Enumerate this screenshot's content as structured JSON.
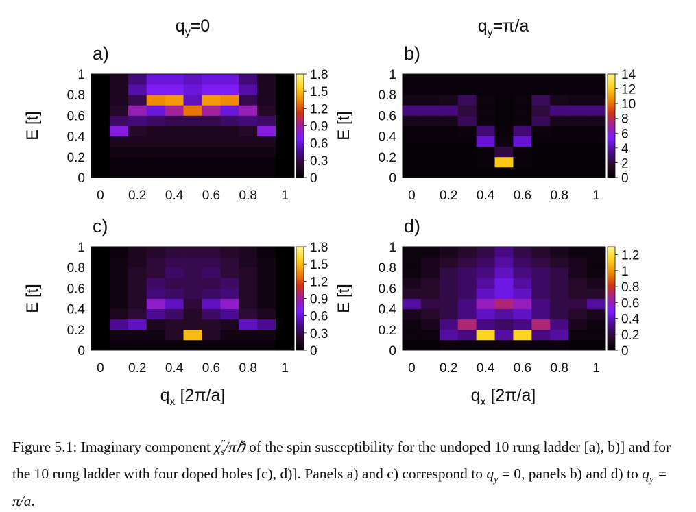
{
  "figure": {
    "column_titles": [
      {
        "base": "q",
        "sub": "y",
        "rest": "=0"
      },
      {
        "base": "q",
        "sub": "y",
        "rest": "=π/a"
      }
    ],
    "x_axis_label": {
      "base": "q",
      "sub": "x",
      "rest": " [2π/a]"
    },
    "y_axis_label": "E [t]",
    "colormap": [
      "#000000",
      "#2a0a2e",
      "#4c0a90",
      "#7a1cff",
      "#a020a0",
      "#d23214",
      "#f08a00",
      "#ffd21a",
      "#fff48a"
    ]
  },
  "chart_data": [
    {
      "type": "heatmap",
      "panel_label": "a)",
      "x": [
        0,
        0.1,
        0.2,
        0.3,
        0.4,
        0.5,
        0.6,
        0.7,
        0.8,
        0.9,
        1
      ],
      "y": [
        0.05,
        0.15,
        0.25,
        0.35,
        0.45,
        0.55,
        0.65,
        0.75,
        0.85,
        0.95
      ],
      "z": [
        [
          0,
          0.05,
          0.05,
          0.05,
          0.05,
          0.05,
          0.05,
          0.05,
          0.05,
          0.05,
          0
        ],
        [
          0,
          0.05,
          0.05,
          0.05,
          0.05,
          0.05,
          0.05,
          0.05,
          0.05,
          0.05,
          0
        ],
        [
          0,
          0.1,
          0.1,
          0.1,
          0.1,
          0.1,
          0.1,
          0.1,
          0.1,
          0.1,
          0
        ],
        [
          0,
          0.15,
          0.15,
          0.15,
          0.15,
          0.15,
          0.15,
          0.15,
          0.15,
          0.15,
          0
        ],
        [
          0,
          0.75,
          0.2,
          0.15,
          0.15,
          0.15,
          0.15,
          0.15,
          0.2,
          0.75,
          0
        ],
        [
          0,
          0.35,
          0.4,
          0.35,
          0.3,
          0.3,
          0.3,
          0.35,
          0.4,
          0.35,
          0
        ],
        [
          0,
          0.2,
          0.85,
          0.6,
          0.9,
          1.3,
          0.9,
          0.6,
          0.85,
          0.2,
          0
        ],
        [
          0,
          0.15,
          0.3,
          1.35,
          1.4,
          0.55,
          1.4,
          1.35,
          0.3,
          0.15,
          0
        ],
        [
          0,
          0.15,
          0.5,
          0.7,
          0.7,
          0.6,
          0.7,
          0.7,
          0.5,
          0.15,
          0
        ],
        [
          0,
          0.15,
          0.4,
          0.6,
          0.6,
          0.55,
          0.6,
          0.6,
          0.4,
          0.15,
          0
        ]
      ],
      "xlim": [
        0,
        1
      ],
      "ylim": [
        0,
        1
      ],
      "x_ticks": [
        "0",
        "0.2",
        "0.4",
        "0.6",
        "0.8",
        "1"
      ],
      "y_ticks": [
        "0",
        "0.2",
        "0.4",
        "0.6",
        "0.8",
        "1"
      ],
      "colorbar": {
        "range": [
          0,
          1.8
        ],
        "ticks": [
          "0",
          "0.3",
          "0.6",
          "0.9",
          "1.2",
          "1.5",
          "1.8"
        ]
      }
    },
    {
      "type": "heatmap",
      "panel_label": "b)",
      "x": [
        0,
        0.1,
        0.2,
        0.3,
        0.4,
        0.5,
        0.6,
        0.7,
        0.8,
        0.9,
        1
      ],
      "y": [
        0.05,
        0.15,
        0.25,
        0.35,
        0.45,
        0.55,
        0.65,
        0.75,
        0.85,
        0.95
      ],
      "z": [
        [
          0.2,
          0.2,
          0.2,
          0.2,
          0.2,
          0.2,
          0.2,
          0.2,
          0.2,
          0.2,
          0.2
        ],
        [
          0.2,
          0.2,
          0.2,
          0.2,
          0.4,
          12.0,
          0.4,
          0.2,
          0.2,
          0.2,
          0.2
        ],
        [
          0.2,
          0.2,
          0.2,
          0.2,
          0.4,
          2.0,
          0.4,
          0.2,
          0.2,
          0.2,
          0.2
        ],
        [
          0.3,
          0.3,
          0.3,
          0.3,
          4.5,
          0.6,
          4.5,
          0.3,
          0.3,
          0.3,
          0.3
        ],
        [
          0.4,
          0.4,
          0.4,
          0.5,
          3.0,
          0.4,
          3.0,
          0.5,
          0.4,
          0.4,
          0.4
        ],
        [
          1.0,
          1.0,
          1.0,
          2.5,
          0.5,
          0.3,
          0.5,
          2.5,
          1.0,
          1.0,
          1.0
        ],
        [
          3.2,
          3.2,
          3.2,
          2.0,
          0.5,
          0.3,
          0.5,
          2.0,
          3.2,
          3.2,
          3.2
        ],
        [
          0.8,
          0.8,
          1.0,
          2.5,
          0.5,
          0.3,
          0.5,
          2.5,
          1.0,
          0.8,
          0.8
        ],
        [
          0.4,
          0.4,
          0.4,
          0.4,
          0.4,
          0.4,
          0.4,
          0.4,
          0.4,
          0.4,
          0.4
        ],
        [
          0.4,
          0.4,
          0.4,
          0.4,
          0.4,
          0.4,
          0.4,
          0.4,
          0.4,
          0.4,
          0.4
        ]
      ],
      "xlim": [
        0,
        1
      ],
      "ylim": [
        0,
        1
      ],
      "x_ticks": [
        "0",
        "0.2",
        "0.4",
        "0.6",
        "0.8",
        "1"
      ],
      "y_ticks": [
        "0",
        "0.2",
        "0.4",
        "0.6",
        "0.8",
        "1"
      ],
      "colorbar": {
        "range": [
          0,
          14
        ],
        "ticks": [
          "0",
          "2",
          "4",
          "6",
          "8",
          "10",
          "12",
          "14"
        ]
      }
    },
    {
      "type": "heatmap",
      "panel_label": "c)",
      "x": [
        0,
        0.1,
        0.2,
        0.3,
        0.4,
        0.5,
        0.6,
        0.7,
        0.8,
        0.9,
        1
      ],
      "y": [
        0.05,
        0.15,
        0.25,
        0.35,
        0.45,
        0.55,
        0.65,
        0.75,
        0.85,
        0.95
      ],
      "z": [
        [
          0,
          0.05,
          0.05,
          0.05,
          0.05,
          0.05,
          0.05,
          0.05,
          0.05,
          0.05,
          0
        ],
        [
          0,
          0.1,
          0.1,
          0.1,
          0.2,
          1.5,
          0.2,
          0.1,
          0.1,
          0.1,
          0
        ],
        [
          0,
          0.45,
          0.55,
          0.15,
          0.2,
          0.2,
          0.2,
          0.15,
          0.55,
          0.45,
          0
        ],
        [
          0,
          0.15,
          0.25,
          0.45,
          0.35,
          0.2,
          0.35,
          0.45,
          0.25,
          0.15,
          0
        ],
        [
          0,
          0.1,
          0.2,
          0.8,
          0.55,
          0.25,
          0.55,
          0.8,
          0.2,
          0.1,
          0
        ],
        [
          0,
          0.1,
          0.2,
          0.4,
          0.35,
          0.3,
          0.35,
          0.4,
          0.2,
          0.1,
          0
        ],
        [
          0,
          0.1,
          0.2,
          0.35,
          0.3,
          0.3,
          0.3,
          0.35,
          0.2,
          0.1,
          0
        ],
        [
          0,
          0.1,
          0.2,
          0.25,
          0.35,
          0.3,
          0.35,
          0.25,
          0.2,
          0.1,
          0
        ],
        [
          0,
          0.1,
          0.15,
          0.25,
          0.3,
          0.3,
          0.3,
          0.25,
          0.15,
          0.1,
          0
        ],
        [
          0,
          0.05,
          0.15,
          0.2,
          0.25,
          0.25,
          0.25,
          0.2,
          0.15,
          0.05,
          0
        ]
      ],
      "xlim": [
        0,
        1
      ],
      "ylim": [
        0,
        1
      ],
      "x_ticks": [
        "0",
        "0.2",
        "0.4",
        "0.6",
        "0.8",
        "1"
      ],
      "y_ticks": [
        "0",
        "0.2",
        "0.4",
        "0.6",
        "0.8",
        "1"
      ],
      "colorbar": {
        "range": [
          0,
          1.8
        ],
        "ticks": [
          "0",
          "0.3",
          "0.6",
          "0.9",
          "1.2",
          "1.5",
          "1.8"
        ]
      }
    },
    {
      "type": "heatmap",
      "panel_label": "d)",
      "x": [
        0,
        0.1,
        0.2,
        0.3,
        0.4,
        0.5,
        0.6,
        0.7,
        0.8,
        0.9,
        1
      ],
      "y": [
        0.05,
        0.15,
        0.25,
        0.35,
        0.45,
        0.55,
        0.65,
        0.75,
        0.85,
        0.95
      ],
      "z": [
        [
          0.02,
          0.02,
          0.05,
          0.05,
          0.05,
          0.05,
          0.05,
          0.05,
          0.05,
          0.02,
          0.02
        ],
        [
          0.05,
          0.05,
          0.35,
          0.3,
          1.15,
          0.35,
          1.15,
          0.3,
          0.35,
          0.05,
          0.05
        ],
        [
          0.05,
          0.1,
          0.3,
          0.7,
          0.3,
          0.25,
          0.3,
          0.7,
          0.3,
          0.1,
          0.05
        ],
        [
          0.1,
          0.15,
          0.2,
          0.3,
          0.4,
          0.35,
          0.4,
          0.3,
          0.2,
          0.15,
          0.1
        ],
        [
          0.35,
          0.2,
          0.2,
          0.3,
          0.6,
          0.7,
          0.6,
          0.3,
          0.2,
          0.2,
          0.35
        ],
        [
          0.15,
          0.15,
          0.2,
          0.25,
          0.4,
          0.45,
          0.4,
          0.25,
          0.2,
          0.15,
          0.15
        ],
        [
          0.1,
          0.15,
          0.2,
          0.25,
          0.35,
          0.45,
          0.35,
          0.25,
          0.2,
          0.15,
          0.1
        ],
        [
          0.05,
          0.1,
          0.2,
          0.25,
          0.3,
          0.4,
          0.3,
          0.25,
          0.2,
          0.1,
          0.05
        ],
        [
          0.05,
          0.1,
          0.15,
          0.2,
          0.25,
          0.35,
          0.25,
          0.2,
          0.15,
          0.1,
          0.05
        ],
        [
          0.05,
          0.05,
          0.1,
          0.15,
          0.2,
          0.3,
          0.2,
          0.15,
          0.1,
          0.05,
          0.05
        ]
      ],
      "xlim": [
        0,
        1
      ],
      "ylim": [
        0,
        1
      ],
      "x_ticks": [
        "0",
        "0.2",
        "0.4",
        "0.6",
        "0.8",
        "1"
      ],
      "y_ticks": [
        "0",
        "0.2",
        "0.4",
        "0.6",
        "0.8",
        "1"
      ],
      "colorbar": {
        "range": [
          0,
          1.3
        ],
        "ticks": [
          "0",
          "0.2",
          "0.4",
          "0.6",
          "0.8",
          "1",
          "1.2"
        ]
      }
    }
  ],
  "caption": {
    "lead": "Figure 5.1: Imaginary component ",
    "chi_base": "χ",
    "chi_prime": "′′",
    "chi_sub": "s",
    "chi_denominator": "/πℏ",
    "middle": " of the spin susceptibility for the undoped 10 rung ladder [a), b)] and for the 10 rung ladder with four doped holes [c), d)]. Panels a) and c) correspond to ",
    "eq1_base": "q",
    "eq1_sub": "y",
    "eq1_rest": " = 0",
    "between": ", panels b) and d) to ",
    "eq2_base": "q",
    "eq2_sub": "y",
    "eq2_rest": " = π/a",
    "end": "."
  }
}
